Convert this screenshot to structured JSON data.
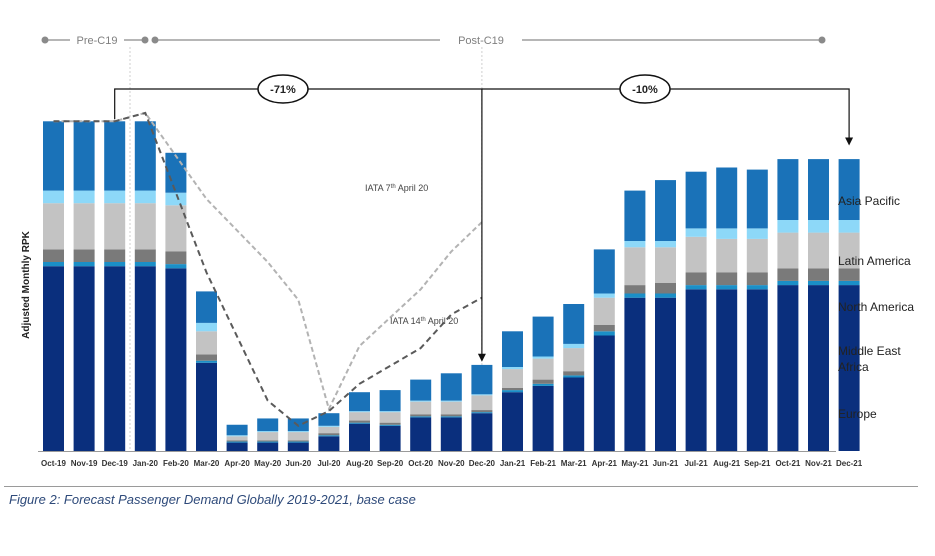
{
  "chart_data": {
    "type": "bar",
    "stacked": true,
    "ylabel": "Adjusted Monthly RPK",
    "categories": [
      "Oct-19",
      "Nov-19",
      "Dec-19",
      "Jan-20",
      "Feb-20",
      "Mar-20",
      "Apr-20",
      "May-20",
      "Jun-20",
      "Jul-20",
      "Aug-20",
      "Sep-20",
      "Oct-20",
      "Nov-20",
      "Dec-20",
      "Jan-21",
      "Feb-21",
      "Mar-21",
      "Apr-21",
      "May-21",
      "Jun-21",
      "Jul-21",
      "Aug-21",
      "Sep-21",
      "Oct-21",
      "Nov-21",
      "Dec-21"
    ],
    "series": [
      {
        "name": "Europe",
        "color": "#0a2f7d",
        "values": [
          88,
          88,
          88,
          88,
          87,
          42,
          4,
          4,
          4,
          7,
          13,
          12,
          16,
          16,
          18,
          28,
          31,
          35,
          55,
          73,
          73,
          77,
          77,
          77,
          79,
          79,
          79
        ]
      },
      {
        "name": "Africa",
        "color": "#1b8fc7",
        "values": [
          2,
          2,
          2,
          2,
          2,
          1,
          0.5,
          0.5,
          0.5,
          0.5,
          0.5,
          0.5,
          0.5,
          0.5,
          0.5,
          1,
          1,
          1,
          2,
          2,
          2,
          2,
          2,
          2,
          2,
          2,
          2
        ]
      },
      {
        "name": "Middle East",
        "color": "#7a7a7a",
        "values": [
          6,
          6,
          6,
          6,
          6,
          3,
          0.5,
          0.5,
          0.5,
          1,
          1,
          1,
          1,
          1,
          1,
          1,
          2,
          2,
          3,
          4,
          5,
          6,
          6,
          6,
          6,
          6,
          6
        ]
      },
      {
        "name": "North America",
        "color": "#c3c3c3",
        "values": [
          22,
          22,
          22,
          22,
          22,
          11,
          2,
          4,
          4,
          3,
          4,
          5,
          6,
          6,
          7,
          9,
          10,
          11,
          13,
          18,
          17,
          17,
          16,
          16,
          17,
          17,
          17
        ]
      },
      {
        "name": "Latin America",
        "color": "#8dd8f8",
        "values": [
          6,
          6,
          6,
          6,
          6,
          4,
          0.5,
          0.5,
          0.5,
          0.5,
          0.5,
          0.5,
          0.5,
          0.5,
          0.5,
          1,
          1,
          2,
          2,
          3,
          3,
          4,
          5,
          5,
          6,
          6,
          6
        ]
      },
      {
        "name": "Asia Pacific",
        "color": "#1a72b8",
        "values": [
          33,
          33,
          33,
          33,
          19,
          15,
          5,
          6,
          6,
          6,
          9,
          10,
          10,
          13,
          14,
          17,
          19,
          19,
          21,
          24,
          29,
          27,
          29,
          28,
          29,
          29,
          29
        ]
      }
    ],
    "lines": [
      {
        "name": "IATA 7th April 20",
        "style": "dashed-light",
        "color": "#b3b3b3",
        "points": [
          [
            "Oct-19",
            157
          ],
          [
            "Dec-19",
            157
          ],
          [
            "Jan-20",
            161
          ],
          [
            "Mar-20",
            120
          ],
          [
            "May-20",
            90
          ],
          [
            "Jun-20",
            72
          ],
          [
            "Jul-20",
            20
          ],
          [
            "Aug-20",
            50
          ],
          [
            "Oct-20",
            77
          ],
          [
            "Nov-20",
            95
          ],
          [
            "Dec-20",
            109
          ]
        ]
      },
      {
        "name": "IATA 14th April 20",
        "style": "dashed-dark",
        "color": "#5a5a5a",
        "points": [
          [
            "Oct-19",
            157
          ],
          [
            "Dec-19",
            157
          ],
          [
            "Jan-20",
            161
          ],
          [
            "Mar-20",
            85
          ],
          [
            "May-20",
            24
          ],
          [
            "Jun-20",
            12
          ],
          [
            "Jul-20",
            19
          ],
          [
            "Aug-20",
            32
          ],
          [
            "Oct-20",
            49
          ],
          [
            "Nov-20",
            65
          ],
          [
            "Dec-20",
            73
          ]
        ]
      }
    ],
    "annotations": {
      "line1_label_prefix": "IATA 7",
      "line1_sup": "th",
      "line1_label_suffix": " April 20",
      "line2_label_prefix": "IATA 14",
      "line2_sup": "th",
      "line2_label_suffix": " April 20",
      "drop_2020": "-71%",
      "drop_2021": "-10%",
      "period_pre": "Pre-C19",
      "period_post": "Post-C19"
    },
    "legend": [
      "Asia Pacific",
      "Latin America",
      "North America",
      "Middle East",
      "Africa",
      "Europe"
    ],
    "legend_placement": "right"
  },
  "caption": "Figure 2: Forecast Passenger Demand Globally 2019-2021, base case"
}
